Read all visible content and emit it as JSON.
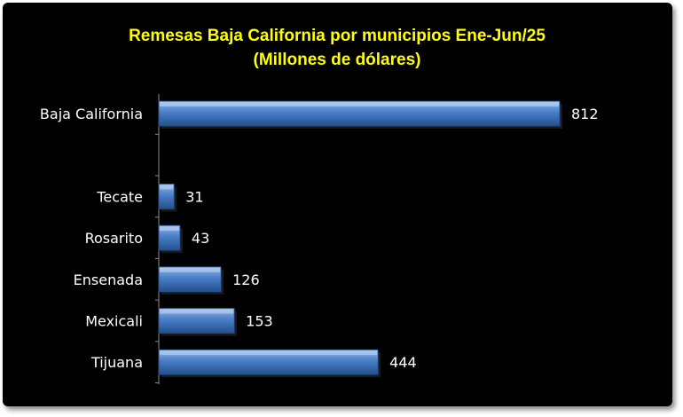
{
  "chart_data": {
    "type": "bar",
    "orientation": "horizontal",
    "title": "Remesas Baja California por municipios Ene-Jun/25",
    "subtitle": "(Millones de dólares)",
    "categories": [
      "Baja California",
      "",
      "Tecate",
      "Rosarito",
      "Ensenada",
      "Mexicali",
      "Tijuana"
    ],
    "values": [
      812,
      null,
      31,
      43,
      126,
      153,
      444
    ],
    "data_labels": [
      "812",
      "",
      "31",
      "43",
      "126",
      "153",
      "444"
    ],
    "xlim": [
      0,
      812
    ],
    "grid": false,
    "legend": "none",
    "colors": {
      "background": "#000000",
      "title": "#ffff00",
      "bar_light": "#8db4e8",
      "bar_mid": "#4a7ec9",
      "bar_dark": "#244f8c",
      "text": "#ffffff",
      "axis": "#8c8c8c"
    }
  }
}
